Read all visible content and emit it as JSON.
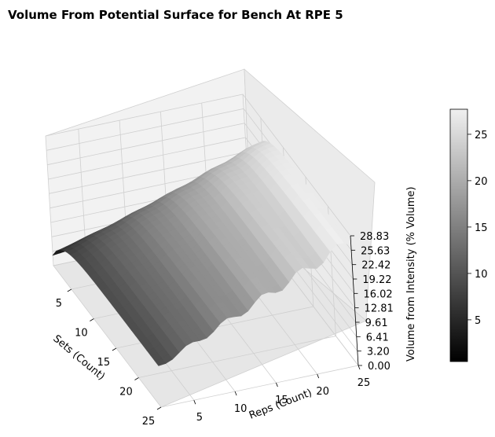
{
  "chart_data": {
    "type": "surface3d",
    "title": "Volume From Potential Surface for Bench At RPE 5",
    "xlabel": "Sets (Count)",
    "ylabel": "Reps (Count)",
    "zlabel": "Volume from Intensity (% Volume)",
    "x_ticks": [
      "5",
      "10",
      "15",
      "20",
      "25"
    ],
    "y_ticks": [
      "5",
      "10",
      "15",
      "20",
      "25"
    ],
    "z_ticks": [
      "0.00",
      "3.20",
      "6.41",
      "9.61",
      "12.81",
      "16.02",
      "19.22",
      "22.42",
      "25.63",
      "28.83"
    ],
    "xlim": [
      1,
      25
    ],
    "ylim": [
      1,
      25
    ],
    "zlim": [
      0,
      28.83
    ],
    "colormap": "gray",
    "colorbar_ticks": [
      "5",
      "10",
      "15",
      "20",
      "25"
    ],
    "colorbar_range": [
      0.5,
      27.7
    ]
  }
}
